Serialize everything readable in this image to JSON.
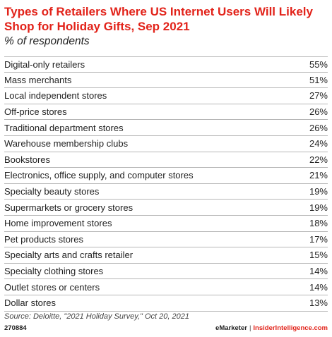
{
  "header": {
    "title": "Types of Retailers Where US Internet Users Will Likely Shop for Holiday Gifts, Sep 2021",
    "subtitle": "% of respondents"
  },
  "chart_data": {
    "type": "table",
    "title": "Types of Retailers Where US Internet Users Will Likely Shop for Holiday Gifts, Sep 2021",
    "subtitle": "% of respondents",
    "rows": [
      {
        "label": "Digital-only retailers",
        "value": "55%"
      },
      {
        "label": "Mass merchants",
        "value": "51%"
      },
      {
        "label": "Local independent stores",
        "value": "27%"
      },
      {
        "label": "Off-price stores",
        "value": "26%"
      },
      {
        "label": "Traditional department stores",
        "value": "26%"
      },
      {
        "label": "Warehouse membership clubs",
        "value": "24%"
      },
      {
        "label": "Bookstores",
        "value": "22%"
      },
      {
        "label": "Electronics, office supply, and computer stores",
        "value": "21%"
      },
      {
        "label": "Specialty beauty stores",
        "value": "19%"
      },
      {
        "label": "Supermarkets or grocery stores",
        "value": "19%"
      },
      {
        "label": "Home improvement stores",
        "value": "18%"
      },
      {
        "label": "Pet products stores",
        "value": "17%"
      },
      {
        "label": "Specialty arts and crafts retailer",
        "value": "15%"
      },
      {
        "label": "Specialty clothing stores",
        "value": "14%"
      },
      {
        "label": "Outlet stores or centers",
        "value": "14%"
      },
      {
        "label": "Dollar stores",
        "value": "13%"
      }
    ]
  },
  "footer": {
    "source": "Source: Deloitte, \"2021 Holiday Survey,\" Oct 20, 2021",
    "chart_id": "270884",
    "brand_emarketer": "eMarketer",
    "brand_separator": "|",
    "brand_insider": "InsiderIntelligence.com"
  },
  "colors": {
    "title": "#e2231a",
    "rule": "#b7b7b7"
  }
}
